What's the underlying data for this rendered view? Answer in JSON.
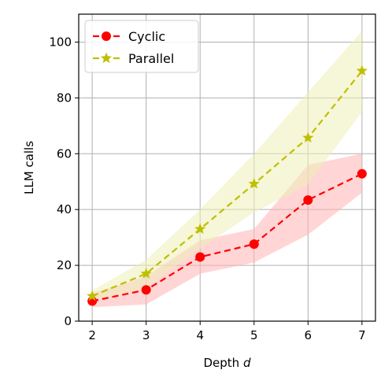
{
  "chart_data": {
    "type": "line",
    "x": [
      2,
      3,
      4,
      5,
      6,
      7
    ],
    "xticks": [
      "2",
      "3",
      "4",
      "5",
      "6",
      "7"
    ],
    "yticks": [
      "0",
      "20",
      "40",
      "60",
      "80",
      "100"
    ],
    "ylim": [
      0,
      110
    ],
    "xlim": [
      1.75,
      7.25
    ],
    "xlabel": "Depth ",
    "xlabel_var": "d",
    "ylabel": "LLM calls",
    "grid": true,
    "legend_position": "top-left",
    "series": [
      {
        "name": "Cyclic",
        "color": "#ff0000",
        "band_color": "#ffb3b3",
        "marker": "circle",
        "values": [
          7.2,
          11.2,
          23.0,
          27.6,
          43.4,
          52.8
        ],
        "lower": [
          5.0,
          6.0,
          17.0,
          21.0,
          31.0,
          46.0
        ],
        "upper": [
          10.0,
          16.0,
          29.0,
          33.0,
          56.0,
          60.0
        ]
      },
      {
        "name": "Parallel",
        "color": "#bfbf00",
        "band_color": "#efefb8",
        "marker": "star",
        "values": [
          9.0,
          17.0,
          33.0,
          49.2,
          65.7,
          89.7
        ],
        "lower": [
          7.0,
          12.0,
          26.0,
          39.0,
          49.0,
          75.0
        ],
        "upper": [
          11.0,
          22.0,
          40.0,
          60.0,
          82.0,
          104.0
        ]
      }
    ]
  }
}
